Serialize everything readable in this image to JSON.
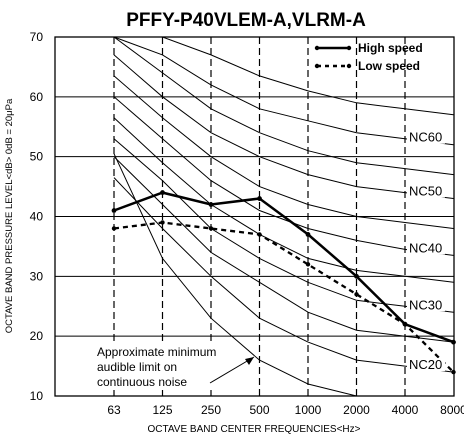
{
  "chart_data": {
    "type": "line",
    "title": "PFFY-P40VLEM-A,VLRM-A",
    "xlabel": "OCTAVE  BAND  CENTER  FREQUENCIES<Hz>",
    "ylabel": "OCTAVE BAND PRESSURE LEVEL<dB> 0dB = 20μPa",
    "categories": [
      "63",
      "125",
      "250",
      "500",
      "1000",
      "2000",
      "4000",
      "8000"
    ],
    "ylim": [
      10,
      70
    ],
    "yticks": [
      "10",
      "20",
      "30",
      "40",
      "50",
      "60",
      "70"
    ],
    "grid": "horizontal solid lines, vertical dashed lines",
    "legend_position": "top-right",
    "series": [
      {
        "name": "High speed",
        "style": "solid",
        "values": [
          41,
          44,
          42,
          43,
          37,
          30,
          22,
          19
        ]
      },
      {
        "name": "Low speed",
        "style": "dashed",
        "values": [
          38,
          39,
          38,
          37,
          32,
          27,
          22,
          14
        ]
      }
    ],
    "nc_curves": [
      {
        "label": "",
        "values": [
          79,
          72,
          67,
          63.5,
          61,
          59,
          58,
          57
        ]
      },
      {
        "label": "NC60",
        "values": [
          74,
          67,
          62,
          58,
          56,
          54,
          53,
          52
        ]
      },
      {
        "label": "",
        "values": [
          71,
          64,
          58,
          54,
          51,
          49,
          48,
          47
        ]
      },
      {
        "label": "NC50",
        "values": [
          67,
          60,
          54,
          50,
          47,
          45,
          44,
          43
        ]
      },
      {
        "label": "",
        "values": [
          63.5,
          56.5,
          50,
          45,
          42,
          40,
          39,
          38
        ]
      },
      {
        "label": "NC40",
        "values": [
          60,
          53,
          46,
          41,
          38,
          36,
          34.5,
          33.5
        ]
      },
      {
        "label": "",
        "values": [
          56.5,
          49,
          42,
          37,
          33,
          31,
          30,
          29
        ]
      },
      {
        "label": "NC30",
        "values": [
          53,
          46,
          38,
          33,
          29,
          26,
          25,
          24
        ]
      },
      {
        "label": "",
        "values": [
          50,
          42,
          34,
          29,
          24,
          21,
          20,
          19
        ]
      },
      {
        "label": "NC20",
        "values": [
          46.5,
          38,
          30,
          23,
          19,
          16,
          15,
          14
        ]
      }
    ],
    "audible_limit_curve": {
      "values": [
        50.5,
        33,
        23,
        16,
        12,
        9,
        7,
        6
      ]
    },
    "annotation": [
      "Approximate minimum",
      "audible limit on",
      "continuous noise"
    ],
    "colors": {
      "lines": "#000000",
      "background": "#ffffff"
    }
  }
}
